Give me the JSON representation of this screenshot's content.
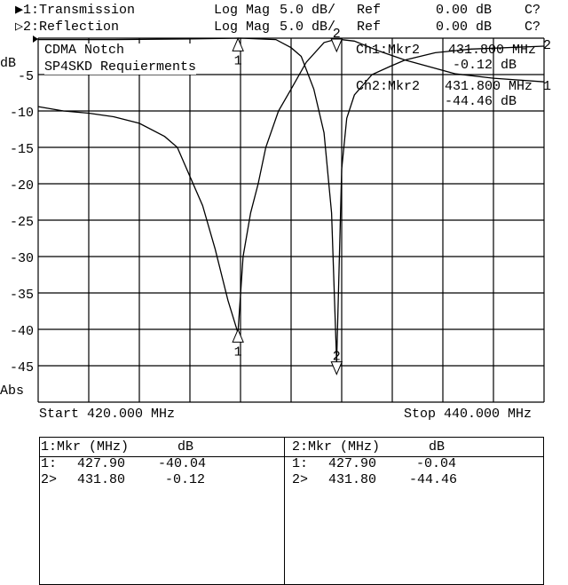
{
  "header": {
    "channels": [
      {
        "label": "▶1:Transmission",
        "format": "Log Mag",
        "scale": "5.0 dB/",
        "ref_label": "Ref",
        "ref_value": "0.00 dB",
        "status": "C?"
      },
      {
        "label": "▷2:Reflection",
        "format": "Log Mag",
        "scale": "5.0 dB/",
        "ref_label": "Ref",
        "ref_value": "0.00 dB",
        "status": "C?"
      }
    ]
  },
  "title_box": {
    "line1": "CDMA Notch",
    "line2": "SP4SKD Requierments"
  },
  "marker_readouts": [
    {
      "label": "Ch1:Mkr2",
      "freq": "431.800 MHz",
      "value": "-0.12 dB",
      "trace_tag": "2"
    },
    {
      "label": "Ch2:Mkr2",
      "freq": "431.800 MHz",
      "value": "-44.46 dB",
      "trace_tag": "1"
    }
  ],
  "axis": {
    "y_unit": "dB",
    "y_bottom_label": "Abs",
    "start": "Start 420.000 MHz",
    "stop": "Stop 440.000 MHz"
  },
  "marker_table": [
    {
      "header_mkr": "1:Mkr (MHz)",
      "header_db": "dB",
      "rows": [
        [
          "1:",
          "427.90",
          "-40.04"
        ],
        [
          "2>",
          "431.80",
          "-0.12"
        ]
      ]
    },
    {
      "header_mkr": "2:Mkr (MHz)",
      "header_db": "dB",
      "rows": [
        [
          "1:",
          "427.90",
          "-0.04"
        ],
        [
          "2>",
          "431.80",
          "-44.46"
        ]
      ]
    }
  ],
  "chart_data": {
    "type": "line",
    "xlim": [
      420,
      440
    ],
    "ylim": [
      -50,
      0
    ],
    "grid": true,
    "x_divisions": 10,
    "y_ticks": [
      -5,
      -10,
      -15,
      -20,
      -25,
      -30,
      -35,
      -40,
      -45
    ],
    "y_tick_labels": [
      "-5",
      "-10",
      "-15",
      "-20",
      "-25",
      "-30",
      "-35",
      "-40",
      "-45"
    ],
    "series": [
      {
        "name": "1:Transmission",
        "x": [
          420,
          421,
          422,
          423,
          424,
          425,
          425.5,
          426,
          426.5,
          427,
          427.5,
          427.9,
          428.1,
          428.4,
          428.7,
          429,
          429.5,
          430,
          430.6,
          431.3,
          431.8,
          432.5,
          433.5,
          434.5,
          436.5,
          438,
          440
        ],
        "y": [
          -9.4,
          -10,
          -10.3,
          -10.8,
          -11.7,
          -13.5,
          -15,
          -19,
          -23,
          -29,
          -36,
          -40.5,
          -30,
          -24,
          -20,
          -15,
          -10,
          -7,
          -3.3,
          -0.6,
          -0.12,
          -0.4,
          -1.8,
          -3,
          -4.9,
          -5.5,
          -6
        ]
      },
      {
        "name": "2:Reflection",
        "x": [
          420,
          423,
          426,
          428,
          429.4,
          430,
          430.4,
          430.9,
          431.3,
          431.6,
          431.8,
          432.0,
          432.2,
          432.5,
          433.2,
          433.9,
          434.5,
          435.7,
          437.1,
          440
        ],
        "y": [
          -0.2,
          -0.2,
          -0.1,
          0,
          -0.2,
          -1.3,
          -2.5,
          -7,
          -13,
          -24,
          -44.5,
          -18,
          -11,
          -7.8,
          -5,
          -3.9,
          -3,
          -2,
          -1.5,
          -1.1
        ]
      }
    ],
    "markers": [
      {
        "id": "1",
        "x": 427.9,
        "ch1": -40.04,
        "ch2": -0.04
      },
      {
        "id": "2",
        "x": 431.8,
        "ch1": -0.12,
        "ch2": -44.46,
        "active": true
      }
    ]
  }
}
